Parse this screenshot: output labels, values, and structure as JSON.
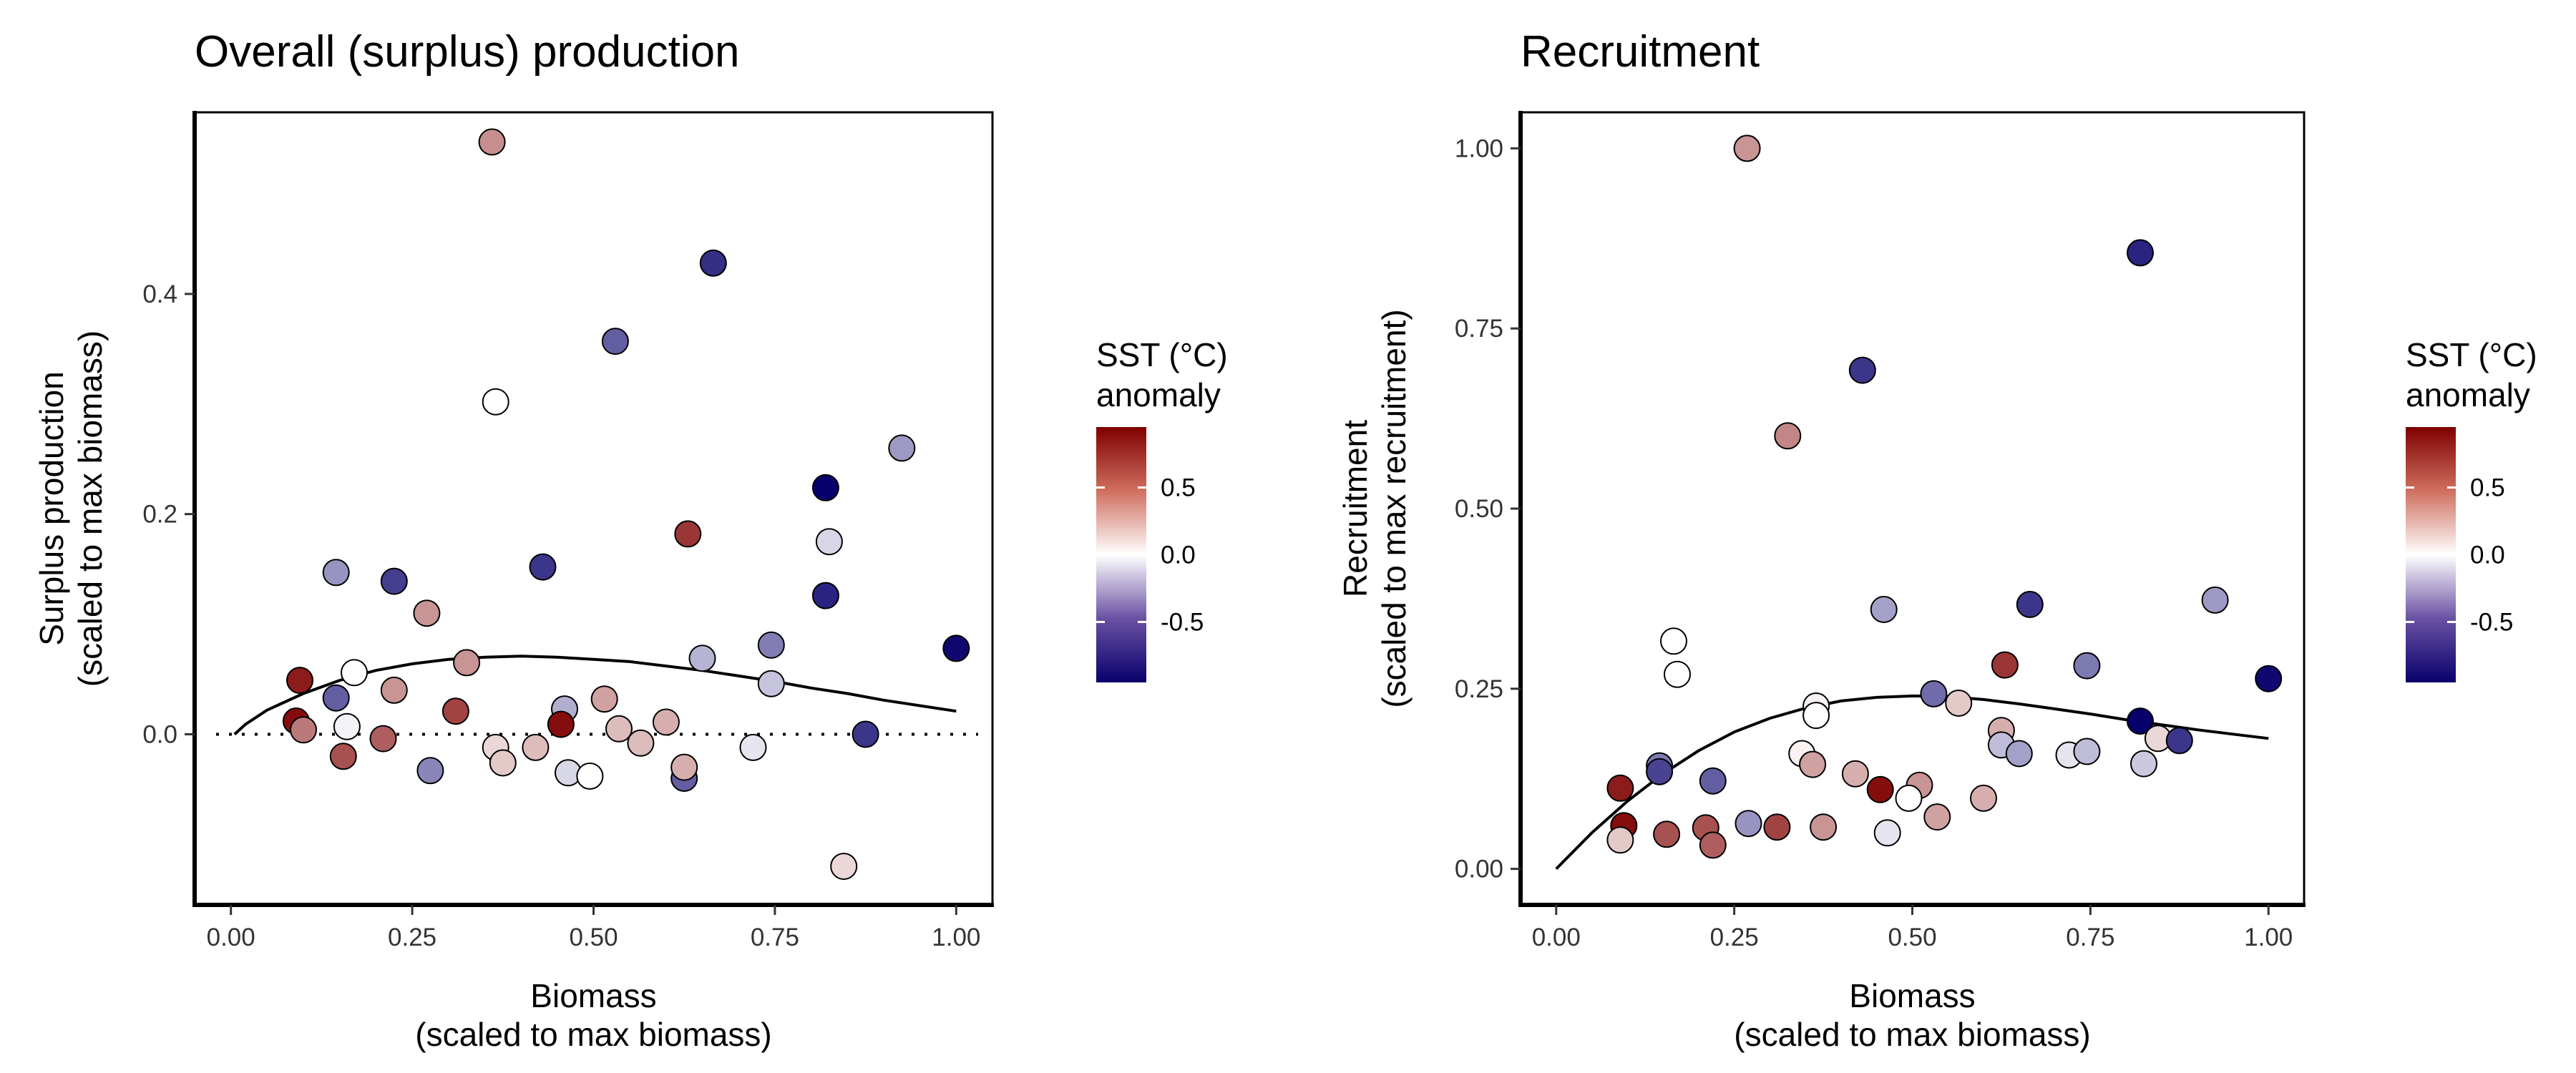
{
  "chart_data": [
    {
      "type": "scatter",
      "title": "Overall (surplus) production",
      "xlabel_lines": [
        "Biomass",
        "(scaled to max biomass)"
      ],
      "ylabel_lines": [
        "Surplus production",
        "(scaled to max biomass)"
      ],
      "xlim": [
        -0.05,
        1.05
      ],
      "ylim": [
        -0.155,
        0.565
      ],
      "xticks": [
        {
          "v": 0,
          "label": "0.00"
        },
        {
          "v": 0.25,
          "label": "0.25"
        },
        {
          "v": 0.5,
          "label": "0.50"
        },
        {
          "v": 0.75,
          "label": "0.75"
        },
        {
          "v": 1,
          "label": "1.00"
        }
      ],
      "yticks": [
        {
          "v": 0,
          "label": "0.0"
        },
        {
          "v": 0.2,
          "label": "0.2"
        },
        {
          "v": 0.4,
          "label": "0.4"
        }
      ],
      "zero_line": true,
      "fit_curve": [
        [
          0.005,
          0.0
        ],
        [
          0.02,
          0.009
        ],
        [
          0.05,
          0.022
        ],
        [
          0.1,
          0.037
        ],
        [
          0.15,
          0.049
        ],
        [
          0.2,
          0.058
        ],
        [
          0.25,
          0.064
        ],
        [
          0.3,
          0.068
        ],
        [
          0.35,
          0.07
        ],
        [
          0.4,
          0.071
        ],
        [
          0.45,
          0.07
        ],
        [
          0.5,
          0.068
        ],
        [
          0.55,
          0.066
        ],
        [
          0.6,
          0.062
        ],
        [
          0.65,
          0.058
        ],
        [
          0.7,
          0.053
        ],
        [
          0.75,
          0.048
        ],
        [
          0.8,
          0.042
        ],
        [
          0.85,
          0.037
        ],
        [
          0.9,
          0.031
        ],
        [
          0.95,
          0.026
        ],
        [
          1.0,
          0.021
        ]
      ],
      "points": [
        {
          "x": 0.36,
          "y": 0.538,
          "sst": 0.42
        },
        {
          "x": 0.665,
          "y": 0.428,
          "sst": -0.78
        },
        {
          "x": 0.53,
          "y": 0.357,
          "sst": -0.6
        },
        {
          "x": 0.365,
          "y": 0.302,
          "sst": 0.0
        },
        {
          "x": 0.925,
          "y": 0.26,
          "sst": -0.38
        },
        {
          "x": 0.82,
          "y": 0.224,
          "sst": -0.95
        },
        {
          "x": 0.63,
          "y": 0.182,
          "sst": 0.75
        },
        {
          "x": 0.825,
          "y": 0.175,
          "sst": -0.15
        },
        {
          "x": 0.43,
          "y": 0.152,
          "sst": -0.75
        },
        {
          "x": 0.145,
          "y": 0.147,
          "sst": -0.4
        },
        {
          "x": 0.225,
          "y": 0.139,
          "sst": -0.72
        },
        {
          "x": 0.82,
          "y": 0.126,
          "sst": -0.82
        },
        {
          "x": 0.27,
          "y": 0.11,
          "sst": 0.4
        },
        {
          "x": 1.0,
          "y": 0.078,
          "sst": -0.92
        },
        {
          "x": 0.745,
          "y": 0.081,
          "sst": -0.48
        },
        {
          "x": 0.65,
          "y": 0.069,
          "sst": -0.28
        },
        {
          "x": 0.325,
          "y": 0.065,
          "sst": 0.4
        },
        {
          "x": 0.17,
          "y": 0.056,
          "sst": 0.0
        },
        {
          "x": 0.095,
          "y": 0.049,
          "sst": 0.85
        },
        {
          "x": 0.745,
          "y": 0.046,
          "sst": -0.22
        },
        {
          "x": 0.225,
          "y": 0.04,
          "sst": 0.4
        },
        {
          "x": 0.145,
          "y": 0.033,
          "sst": -0.6
        },
        {
          "x": 0.515,
          "y": 0.032,
          "sst": 0.35
        },
        {
          "x": 0.31,
          "y": 0.021,
          "sst": 0.7
        },
        {
          "x": 0.46,
          "y": 0.023,
          "sst": -0.3
        },
        {
          "x": 0.09,
          "y": 0.012,
          "sst": 0.9
        },
        {
          "x": 0.455,
          "y": 0.009,
          "sst": 0.9
        },
        {
          "x": 0.6,
          "y": 0.011,
          "sst": 0.3
        },
        {
          "x": 0.1,
          "y": 0.004,
          "sst": 0.5
        },
        {
          "x": 0.16,
          "y": 0.007,
          "sst": -0.05
        },
        {
          "x": 0.535,
          "y": 0.005,
          "sst": 0.25
        },
        {
          "x": 0.875,
          "y": 0.0,
          "sst": -0.75
        },
        {
          "x": 0.21,
          "y": -0.004,
          "sst": 0.6
        },
        {
          "x": 0.565,
          "y": -0.008,
          "sst": 0.25
        },
        {
          "x": 0.625,
          "y": -0.04,
          "sst": -0.6
        },
        {
          "x": 0.365,
          "y": -0.012,
          "sst": 0.15
        },
        {
          "x": 0.42,
          "y": -0.012,
          "sst": 0.25
        },
        {
          "x": 0.72,
          "y": -0.012,
          "sst": -0.1
        },
        {
          "x": 0.155,
          "y": -0.02,
          "sst": 0.65
        },
        {
          "x": 0.375,
          "y": -0.026,
          "sst": 0.2
        },
        {
          "x": 0.625,
          "y": -0.03,
          "sst": 0.3
        },
        {
          "x": 0.275,
          "y": -0.033,
          "sst": -0.45
        },
        {
          "x": 0.465,
          "y": -0.035,
          "sst": -0.15
        },
        {
          "x": 0.495,
          "y": -0.038,
          "sst": 0.0
        },
        {
          "x": 0.845,
          "y": -0.12,
          "sst": 0.15
        }
      ]
    },
    {
      "type": "scatter",
      "title": "Recruitment",
      "xlabel_lines": [
        "Biomass",
        "(scaled to max biomass)"
      ],
      "ylabel_lines": [
        "Recruitment",
        "(scaled to max recruitment)"
      ],
      "xlim": [
        -0.05,
        1.05
      ],
      "ylim": [
        -0.05,
        1.05
      ],
      "xticks": [
        {
          "v": 0,
          "label": "0.00"
        },
        {
          "v": 0.25,
          "label": "0.25"
        },
        {
          "v": 0.5,
          "label": "0.50"
        },
        {
          "v": 0.75,
          "label": "0.75"
        },
        {
          "v": 1,
          "label": "1.00"
        }
      ],
      "yticks": [
        {
          "v": 0,
          "label": "0.00"
        },
        {
          "v": 0.25,
          "label": "0.25"
        },
        {
          "v": 0.5,
          "label": "0.50"
        },
        {
          "v": 0.75,
          "label": "0.75"
        },
        {
          "v": 1,
          "label": "1.00"
        }
      ],
      "zero_line": false,
      "fit_curve": [
        [
          0.0,
          0.0
        ],
        [
          0.05,
          0.05
        ],
        [
          0.1,
          0.094
        ],
        [
          0.15,
          0.132
        ],
        [
          0.2,
          0.164
        ],
        [
          0.25,
          0.19
        ],
        [
          0.3,
          0.209
        ],
        [
          0.35,
          0.223
        ],
        [
          0.4,
          0.233
        ],
        [
          0.45,
          0.238
        ],
        [
          0.5,
          0.24
        ],
        [
          0.55,
          0.239
        ],
        [
          0.6,
          0.235
        ],
        [
          0.65,
          0.229
        ],
        [
          0.7,
          0.222
        ],
        [
          0.75,
          0.215
        ],
        [
          0.8,
          0.207
        ],
        [
          0.85,
          0.2
        ],
        [
          0.9,
          0.193
        ],
        [
          0.95,
          0.187
        ],
        [
          1.0,
          0.181
        ]
      ],
      "points": [
        {
          "x": 0.268,
          "y": 1.0,
          "sst": 0.4
        },
        {
          "x": 0.82,
          "y": 0.855,
          "sst": -0.82
        },
        {
          "x": 0.43,
          "y": 0.692,
          "sst": -0.75
        },
        {
          "x": 0.325,
          "y": 0.601,
          "sst": 0.45
        },
        {
          "x": 0.925,
          "y": 0.373,
          "sst": -0.38
        },
        {
          "x": 0.665,
          "y": 0.367,
          "sst": -0.75
        },
        {
          "x": 0.46,
          "y": 0.36,
          "sst": -0.35
        },
        {
          "x": 0.165,
          "y": 0.316,
          "sst": 0.0
        },
        {
          "x": 0.63,
          "y": 0.283,
          "sst": 0.75
        },
        {
          "x": 0.745,
          "y": 0.282,
          "sst": -0.5
        },
        {
          "x": 0.17,
          "y": 0.27,
          "sst": 0.0
        },
        {
          "x": 1.0,
          "y": 0.264,
          "sst": -0.92
        },
        {
          "x": 0.53,
          "y": 0.243,
          "sst": -0.55
        },
        {
          "x": 0.565,
          "y": 0.23,
          "sst": 0.2
        },
        {
          "x": 0.365,
          "y": 0.226,
          "sst": 0.05
        },
        {
          "x": 0.365,
          "y": 0.213,
          "sst": 0.0
        },
        {
          "x": 0.82,
          "y": 0.205,
          "sst": -0.95
        },
        {
          "x": 0.625,
          "y": 0.192,
          "sst": 0.3
        },
        {
          "x": 0.845,
          "y": 0.181,
          "sst": 0.15
        },
        {
          "x": 0.875,
          "y": 0.178,
          "sst": -0.75
        },
        {
          "x": 0.625,
          "y": 0.172,
          "sst": -0.25
        },
        {
          "x": 0.345,
          "y": 0.16,
          "sst": 0.05
        },
        {
          "x": 0.65,
          "y": 0.16,
          "sst": -0.35
        },
        {
          "x": 0.72,
          "y": 0.158,
          "sst": -0.1
        },
        {
          "x": 0.745,
          "y": 0.163,
          "sst": -0.25
        },
        {
          "x": 0.36,
          "y": 0.145,
          "sst": 0.35
        },
        {
          "x": 0.145,
          "y": 0.143,
          "sst": -0.5
        },
        {
          "x": 0.825,
          "y": 0.146,
          "sst": -0.2
        },
        {
          "x": 0.145,
          "y": 0.135,
          "sst": -0.7
        },
        {
          "x": 0.42,
          "y": 0.132,
          "sst": 0.3
        },
        {
          "x": 0.22,
          "y": 0.122,
          "sst": -0.6
        },
        {
          "x": 0.51,
          "y": 0.116,
          "sst": 0.4
        },
        {
          "x": 0.09,
          "y": 0.112,
          "sst": 0.85
        },
        {
          "x": 0.455,
          "y": 0.11,
          "sst": 0.9
        },
        {
          "x": 0.6,
          "y": 0.098,
          "sst": 0.3
        },
        {
          "x": 0.495,
          "y": 0.098,
          "sst": 0.0
        },
        {
          "x": 0.535,
          "y": 0.072,
          "sst": 0.35
        },
        {
          "x": 0.27,
          "y": 0.063,
          "sst": -0.4
        },
        {
          "x": 0.095,
          "y": 0.06,
          "sst": 0.9
        },
        {
          "x": 0.31,
          "y": 0.058,
          "sst": 0.7
        },
        {
          "x": 0.375,
          "y": 0.058,
          "sst": 0.4
        },
        {
          "x": 0.21,
          "y": 0.057,
          "sst": 0.65
        },
        {
          "x": 0.465,
          "y": 0.05,
          "sst": -0.1
        },
        {
          "x": 0.155,
          "y": 0.048,
          "sst": 0.65
        },
        {
          "x": 0.09,
          "y": 0.04,
          "sst": 0.2
        },
        {
          "x": 0.22,
          "y": 0.033,
          "sst": 0.6
        }
      ]
    }
  ],
  "legend": {
    "title_lines": [
      "SST (°C)",
      "anomaly"
    ],
    "range": [
      -0.95,
      0.95
    ],
    "ticks": [
      {
        "v": 0.5,
        "label": "0.5"
      },
      {
        "v": 0.0,
        "label": "0.0"
      },
      {
        "v": -0.5,
        "label": "-0.5"
      }
    ],
    "colors": {
      "low": "#08006b",
      "mid": "#ffffff",
      "high": "#7f0000"
    }
  }
}
